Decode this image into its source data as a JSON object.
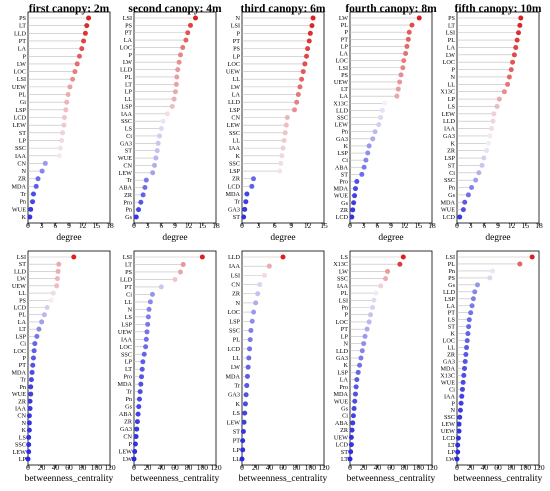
{
  "chart_data": [
    {
      "type": "scatter",
      "title": "first canopy: 2m",
      "xlabel": "degree",
      "xlim": [
        0,
        18
      ],
      "xticks": [
        0,
        3,
        6,
        9,
        12,
        15,
        18
      ],
      "labels": [
        "PS",
        "LT",
        "LLD",
        "PT",
        "LA",
        "P",
        "LW",
        "LOC",
        "LSI",
        "UEW",
        "PL",
        "Gi",
        "LSP",
        "LCD",
        "LEW",
        "ST",
        "LP",
        "SSC",
        "IAA",
        "CN",
        "N",
        "ZR",
        "MDA",
        "Tr",
        "Pn",
        "WUE",
        "K"
      ],
      "values": [
        13.3,
        12.9,
        12.6,
        12.2,
        11.8,
        11.3,
        10.8,
        10.3,
        9.8,
        9.2,
        8.8,
        8.5,
        8.3,
        8.0,
        7.9,
        7.6,
        7.4,
        7.1,
        6.9,
        3.8,
        3.1,
        2.2,
        1.8,
        1.2,
        1.0,
        0.6,
        0.4
      ]
    },
    {
      "type": "scatter",
      "title": "second canopy: 4m",
      "xlabel": "degree",
      "xlim": [
        0,
        18
      ],
      "xticks": [
        0,
        3,
        6,
        9,
        12,
        15,
        18
      ],
      "labels": [
        "LSI",
        "PS",
        "PT",
        "LA",
        "LOC",
        "P",
        "LW",
        "LLD",
        "PL",
        "LT",
        "LP",
        "LL",
        "LSP",
        "IAA",
        "SSC",
        "LS",
        "Ci",
        "GA3",
        "ST",
        "WUE",
        "CN",
        "LEW",
        "Tr",
        "ABA",
        "ZR",
        "Pro",
        "Pn",
        "Gs"
      ],
      "values": [
        13.5,
        12.4,
        11.8,
        11.4,
        10.7,
        10.2,
        9.9,
        9.6,
        9.4,
        9.3,
        9.1,
        8.8,
        8.4,
        7.3,
        6.4,
        6.0,
        5.6,
        5.3,
        5.1,
        4.8,
        4.5,
        4.1,
        2.7,
        2.4,
        2.0,
        1.5,
        1.0,
        0.5
      ]
    },
    {
      "type": "scatter",
      "title": "third canopy: 6m",
      "xlabel": "degree",
      "xlim": [
        0,
        15
      ],
      "xticks": [
        0,
        3,
        6,
        9,
        12,
        15
      ],
      "labels": [
        "N",
        "LSI",
        "P",
        "PT",
        "PS",
        "LP",
        "LOC",
        "UEW",
        "LL",
        "LW",
        "LA",
        "LLD",
        "LSP",
        "CN",
        "LEW",
        "SSC",
        "LL",
        "IAA",
        "K",
        "SSC",
        "LSP",
        "ZR",
        "LCD",
        "MDA",
        "Tr",
        "GA3",
        "ST"
      ],
      "values": [
        13.0,
        12.8,
        12.5,
        12.3,
        12.0,
        11.8,
        11.5,
        11.2,
        10.9,
        10.6,
        10.3,
        10.0,
        9.6,
        8.3,
        8.1,
        7.9,
        7.7,
        7.5,
        7.3,
        7.1,
        6.9,
        2.1,
        1.8,
        0.9,
        0.7,
        0.5,
        0.3
      ]
    },
    {
      "type": "scatter",
      "title": "fourth canopy: 8m",
      "xlabel": "degree",
      "xlim": [
        0,
        18
      ],
      "xticks": [
        0,
        3,
        6,
        9,
        12,
        15,
        18
      ],
      "labels": [
        "LW",
        "PL",
        "P",
        "PT",
        "LP",
        "LA",
        "LOC",
        "LSI",
        "PS",
        "UEW",
        "LT",
        "LA",
        "X13C",
        "LLD",
        "SSC",
        "LEW",
        "Pn",
        "GA3",
        "K",
        "LSP",
        "Ci",
        "ABA",
        "ST",
        "Pro",
        "MDA",
        "WUE",
        "Gs",
        "ZR",
        "LCD"
      ],
      "values": [
        15.2,
        13.6,
        13.0,
        12.8,
        12.5,
        12.2,
        11.8,
        11.6,
        11.2,
        10.9,
        10.6,
        10.3,
        7.6,
        7.1,
        6.7,
        6.3,
        5.5,
        5.0,
        4.2,
        3.9,
        3.5,
        3.1,
        2.6,
        1.5,
        1.2,
        1.0,
        0.8,
        0.6,
        0.4
      ]
    },
    {
      "type": "scatter",
      "title": "fifth canopy: 10m",
      "xlabel": "degree",
      "xlim": [
        0,
        18
      ],
      "xticks": [
        0,
        3,
        6,
        9,
        12,
        15,
        18
      ],
      "labels": [
        "PS",
        "LT",
        "LSI",
        "PL",
        "LA",
        "LW",
        "LOC",
        "P",
        "N",
        "LL",
        "X13C",
        "LP",
        "LS",
        "LEW",
        "LLD",
        "IAA",
        "GA3",
        "K",
        "ZR",
        "LSP",
        "ST",
        "Ci",
        "SSC",
        "Pn",
        "Gs",
        "MDA",
        "WUE",
        "LCD"
      ],
      "values": [
        14.0,
        13.8,
        13.5,
        13.2,
        12.9,
        12.6,
        12.2,
        11.9,
        11.5,
        11.1,
        10.4,
        9.3,
        8.8,
        8.1,
        7.9,
        7.6,
        7.2,
        6.9,
        6.5,
        5.9,
        5.5,
        4.8,
        4.1,
        3.2,
        2.5,
        1.7,
        1.4,
        0.6
      ]
    },
    {
      "type": "scatter",
      "xlabel": "betweenness_centrality",
      "xlim": [
        0,
        120
      ],
      "xticks": [
        0,
        20,
        40,
        60,
        80,
        100,
        120
      ],
      "labels": [
        "LSI",
        "ST",
        "LLD",
        "LW",
        "UEW",
        "LL",
        "PS",
        "LCD",
        "PL",
        "LA",
        "LT",
        "LSP",
        "Ci",
        "LOC",
        "P",
        "PT",
        "MDA",
        "Tr",
        "Pn",
        "WUE",
        "ZR",
        "IAA",
        "CN",
        "N",
        "K",
        "LS",
        "SSC",
        "LEW",
        "LP"
      ],
      "values": [
        67,
        45,
        44,
        43,
        42,
        37,
        34,
        28,
        24,
        20,
        16,
        13,
        10,
        9,
        8,
        7,
        6,
        5,
        4,
        4,
        3,
        3,
        2,
        2,
        2,
        1,
        1,
        1,
        0
      ]
    },
    {
      "type": "scatter",
      "xlabel": "betweenness_centrality",
      "xlim": [
        0,
        120
      ],
      "xticks": [
        0,
        20,
        40,
        60,
        80,
        100,
        120
      ],
      "labels": [
        "LSI",
        "LT",
        "PS",
        "LLD",
        "PT",
        "Ci",
        "LL",
        "N",
        "LS",
        "LSP",
        "UEW",
        "IAA",
        "LOC",
        "SSC",
        "LP",
        "LT",
        "Pro",
        "MDA",
        "Tr",
        "Pn",
        "Gs",
        "ABA",
        "ZR",
        "GA3",
        "CN",
        "P",
        "LEW",
        "LW"
      ],
      "values": [
        100,
        72,
        68,
        60,
        40,
        27,
        24,
        22,
        21,
        20,
        19,
        18,
        17,
        15,
        13,
        12,
        11,
        10,
        9,
        8,
        7,
        6,
        5,
        4,
        3,
        2,
        1,
        0
      ]
    },
    {
      "type": "scatter",
      "xlabel": "betweenness_centrality",
      "xlim": [
        0,
        120
      ],
      "xticks": [
        0,
        20,
        40,
        60,
        80,
        100,
        120
      ],
      "labels": [
        "LLD",
        "IAA",
        "LSI",
        "CN",
        "ZR",
        "N",
        "LOC",
        "LSP",
        "SSC",
        "PL",
        "LCD",
        "LL",
        "LW",
        "MDA",
        "Tr",
        "GA3",
        "K",
        "LS",
        "LEW",
        "ST",
        "PT",
        "LP",
        "LL"
      ],
      "values": [
        60,
        40,
        33,
        26,
        23,
        20,
        17,
        15,
        13,
        12,
        11,
        10,
        9,
        8,
        7,
        6,
        5,
        4,
        3,
        2,
        1,
        1,
        0
      ]
    },
    {
      "type": "scatter",
      "xlabel": "betweenness_centrality",
      "xlim": [
        0,
        120
      ],
      "xticks": [
        0,
        20,
        40,
        60,
        80,
        100,
        120
      ],
      "labels": [
        "LS",
        "X13C",
        "LW",
        "SSC",
        "IAA",
        "PL",
        "LSI",
        "Pn",
        "P",
        "LOC",
        "PT",
        "LP",
        "N",
        "LLD",
        "GA3",
        "K",
        "LSP",
        "LA",
        "Pro",
        "MDA",
        "WUE",
        "Gs",
        "Ci",
        "ABA",
        "ZR",
        "UEW",
        "LCD",
        "ST",
        "LT"
      ],
      "values": [
        78,
        73,
        55,
        52,
        45,
        38,
        35,
        33,
        30,
        28,
        25,
        22,
        20,
        18,
        16,
        14,
        12,
        10,
        9,
        8,
        7,
        6,
        5,
        4,
        3,
        2,
        2,
        1,
        0
      ]
    },
    {
      "type": "scatter",
      "xlabel": "betweenness_centrality",
      "xlim": [
        0,
        120
      ],
      "xticks": [
        0,
        20,
        40,
        60,
        80,
        100,
        120
      ],
      "labels": [
        "LSI",
        "PL",
        "Pn",
        "PS",
        "Gs",
        "LLD",
        "LSP",
        "LA",
        "PT",
        "LS",
        "ST",
        "K",
        "LOC",
        "LL",
        "ZR",
        "GA3",
        "MDA",
        "X13C",
        "WUE",
        "Ci",
        "IAA",
        "P",
        "N",
        "SSC",
        "LEW",
        "UEW",
        "LCD",
        "LT",
        "LP",
        "LW"
      ],
      "values": [
        110,
        92,
        52,
        48,
        30,
        26,
        24,
        22,
        20,
        18,
        17,
        16,
        15,
        14,
        13,
        12,
        11,
        10,
        9,
        8,
        7,
        6,
        5,
        4,
        3,
        3,
        2,
        1,
        1,
        0
      ]
    }
  ]
}
